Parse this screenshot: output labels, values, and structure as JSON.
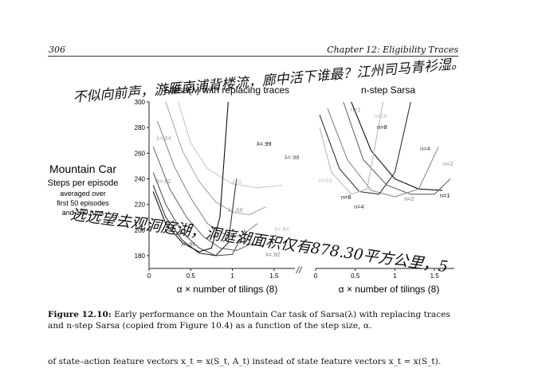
{
  "page": {
    "number": "306",
    "chapter": "Chapter 12: Eligibility Traces"
  },
  "left_panel": {
    "title": "Sarsa(λ) with replacing traces",
    "side_title": "Mountain Car",
    "side_subtitle": "Steps per episode",
    "side_note": [
      "averaged over",
      "first 50 episodes",
      "and 100 runs"
    ],
    "y_ticks": [
      "300",
      "280",
      "260",
      "240",
      "220",
      "200",
      "180"
    ],
    "x_ticks": [
      "0",
      "0.5",
      "1",
      "1.5"
    ],
    "x_axis_label": "α × number of tilings (8)",
    "curve_labels": [
      "λ=.99",
      "λ=.98",
      "λ=.84",
      "λ=.92",
      "λ=0",
      "λ=.68",
      "λ=.84",
      "λ=.96",
      "λ=.92"
    ]
  },
  "right_panel": {
    "title": "n-step Sarsa",
    "x_ticks": [
      "0",
      "0.5",
      "1",
      "1.5"
    ],
    "x_axis_label": "α × number of tilings (8)",
    "curve_labels": [
      "n=1",
      "n=16",
      "n=8",
      "n=4",
      "n=2",
      "n=16",
      "n=1",
      "n=8",
      "n=4",
      "n=2"
    ]
  },
  "chart_data": [
    {
      "type": "line",
      "title": "Sarsa(λ) with replacing traces",
      "xlabel": "α × number of tilings (8)",
      "ylabel": "Steps per episode",
      "xlim": [
        0,
        1.75
      ],
      "ylim": [
        170,
        300
      ],
      "series": [
        {
          "name": "λ=0",
          "x": [
            0.35,
            0.5,
            0.7,
            1.0,
            1.3,
            1.6
          ],
          "y": [
            300,
            268,
            248,
            236,
            233,
            235
          ]
        },
        {
          "name": "λ=.68",
          "x": [
            0.2,
            0.4,
            0.6,
            0.8,
            1.0,
            1.2,
            1.4
          ],
          "y": [
            300,
            262,
            238,
            222,
            214,
            212,
            218
          ]
        },
        {
          "name": "λ=.84",
          "x": [
            0.1,
            0.3,
            0.5,
            0.7,
            0.9,
            1.1,
            1.3
          ],
          "y": [
            285,
            250,
            225,
            205,
            197,
            195,
            205
          ]
        },
        {
          "name": "λ=.92",
          "x": [
            0.05,
            0.25,
            0.45,
            0.65,
            0.85,
            1.05,
            1.25
          ],
          "y": [
            265,
            232,
            210,
            195,
            186,
            184,
            190
          ]
        },
        {
          "name": "λ=.96",
          "x": [
            0.05,
            0.2,
            0.4,
            0.6,
            0.8,
            1.0,
            1.15
          ],
          "y": [
            245,
            220,
            198,
            186,
            180,
            181,
            200
          ]
        },
        {
          "name": "λ=.98",
          "x": [
            0.05,
            0.2,
            0.4,
            0.6,
            0.8,
            0.95,
            1.05
          ],
          "y": [
            235,
            210,
            192,
            182,
            180,
            190,
            240
          ]
        },
        {
          "name": "λ=.99",
          "x": [
            0.05,
            0.2,
            0.4,
            0.6,
            0.75,
            0.85,
            0.95
          ],
          "y": [
            230,
            205,
            190,
            183,
            186,
            210,
            300
          ]
        }
      ]
    },
    {
      "type": "line",
      "title": "n-step Sarsa",
      "xlabel": "α × number of tilings (8)",
      "xlim": [
        0,
        1.75
      ],
      "ylim": [
        170,
        300
      ],
      "series": [
        {
          "name": "n=1",
          "x": [
            0.45,
            0.7,
            1.0,
            1.3,
            1.6
          ],
          "y": [
            300,
            262,
            240,
            232,
            231
          ]
        },
        {
          "name": "n=2",
          "x": [
            0.35,
            0.6,
            0.9,
            1.2,
            1.5,
            1.7
          ],
          "y": [
            300,
            255,
            235,
            228,
            228,
            240
          ]
        },
        {
          "name": "n=4",
          "x": [
            0.15,
            0.4,
            0.7,
            1.0,
            1.3,
            1.55
          ],
          "y": [
            295,
            255,
            231,
            226,
            232,
            265
          ]
        },
        {
          "name": "n=8",
          "x": [
            0.05,
            0.3,
            0.55,
            0.8,
            1.0,
            1.2
          ],
          "y": [
            290,
            248,
            230,
            228,
            245,
            300
          ]
        },
        {
          "name": "n=16",
          "x": [
            0.05,
            0.2,
            0.45,
            0.65,
            0.85
          ],
          "y": [
            280,
            245,
            228,
            232,
            300
          ]
        }
      ]
    }
  ],
  "caption": {
    "label": "Figure 12.10:",
    "text": "Early performance on the Mountain Car task of Sarsa(λ) with replacing traces and n-step Sarsa (copied from Figure 10.4) as a function of the step size, α."
  },
  "body_text": "of state–action feature vectors x_t = x(S_t, A_t) instead of state feature vectors x_t = x(S_t).",
  "handwriting": {
    "line1": "不似向前声，游雁南浦背楼流，廊中活下谁最？江州司马青衫湿。",
    "line2": "远远望去观洞庭湖，洞庭湖面积仅有878.30平方公里，5"
  }
}
